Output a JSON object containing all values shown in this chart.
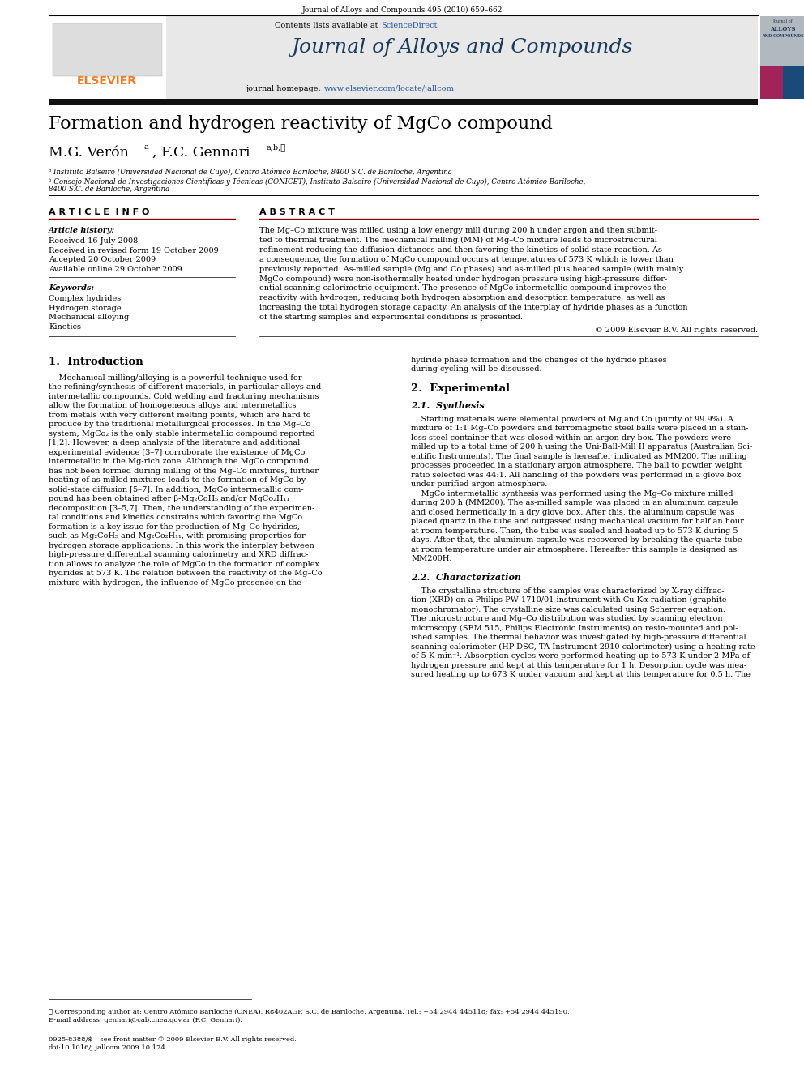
{
  "page_width": 9.92,
  "page_height": 13.23,
  "dpi": 100,
  "bg": "#ffffff",
  "header_ref": "Journal of Alloys and Compounds 495 (2010) 659–662",
  "contents_text": "Contents lists available at ",
  "sciencedirect": "ScienceDirect",
  "sd_color": "#2255aa",
  "journal_name": "Journal of Alloys and Compounds",
  "journal_name_color": "#1a3a5c",
  "homepage_plain": "journal homepage: ",
  "homepage_url": "www.elsevier.com/locate/jallcom",
  "homepage_color": "#2255aa",
  "elsevier_color": "#f47920",
  "title": "Formation and hydrogen reactivity of MgCo compound",
  "author1": "M.G. Verón",
  "author1_sup": "a",
  "author2": ", F.C. Gennari",
  "author2_sup": "a,b,★",
  "affil_a": "ᵃ Instituto Balseiro (Universidad Nacional de Cuyo), Centro Atómico Bariloche, 8400 S.C. de Bariloche, Argentina",
  "affil_b1": "ᵇ Consejo Nacional de Investigaciones Científicas y Técnicas (CONICET), Instituto Balseiro (Universidad Nacional de Cuyo), Centro Atómico Bariloche,",
  "affil_b2": "8400 S.C. de Bariloche, Argentina",
  "art_info_hdr": "A R T I C L E  I N F O",
  "abstract_hdr": "A B S T R A C T",
  "art_history": "Article history:",
  "received": "Received 16 July 2008",
  "received_revised": "Received in revised form 19 October 2009",
  "accepted": "Accepted 20 October 2009",
  "available": "Available online 29 October 2009",
  "keywords_hdr": "Keywords:",
  "keywords": [
    "Complex hydrides",
    "Hydrogen storage",
    "Mechanical alloying",
    "Kinetics"
  ],
  "abstract_lines": [
    "The Mg–Co mixture was milled using a low energy mill during 200 h under argon and then submit-",
    "ted to thermal treatment. The mechanical milling (MM) of Mg–Co mixture leads to microstructural",
    "refinement reducing the diffusion distances and then favoring the kinetics of solid-state reaction. As",
    "a consequence, the formation of MgCo compound occurs at temperatures of 573 K which is lower than",
    "previously reported. As-milled sample (Mg and Co phases) and as-milled plus heated sample (with mainly",
    "MgCo compound) were non-isothermally heated under hydrogen pressure using high-pressure differ-",
    "ential scanning calorimetric equipment. The presence of MgCo intermetallic compound improves the",
    "reactivity with hydrogen, reducing both hydrogen absorption and desorption temperature, as well as",
    "increasing the total hydrogen storage capacity. An analysis of the interplay of hydride phases as a function",
    "of the starting samples and experimental conditions is presented."
  ],
  "copyright": "© 2009 Elsevier B.V. All rights reserved.",
  "sec1_title": "1.  Introduction",
  "sec1_col1": [
    "    Mechanical milling/alloying is a powerful technique used for",
    "the refining/synthesis of different materials, in particular alloys and",
    "intermetallic compounds. Cold welding and fracturing mechanisms",
    "allow the formation of homogeneous alloys and intermetallics",
    "from metals with very different melting points, which are hard to",
    "produce by the traditional metallurgical processes. In the Mg–Co",
    "system, MgCo₂ is the only stable intermetallic compound reported",
    "[1,2]. However, a deep analysis of the literature and additional",
    "experimental evidence [3–7] corroborate the existence of MgCo",
    "intermetallic in the Mg-rich zone. Although the MgCo compound",
    "has not been formed during milling of the Mg–Co mixtures, further",
    "heating of as-milled mixtures leads to the formation of MgCo by",
    "solid-state diffusion [5–7]. In addition, MgCo intermetallic com-",
    "pound has been obtained after β-Mg₂CoH₅ and/or MgCo₂H₁₁",
    "decomposition [3–5,7]. Then, the understanding of the experimen-",
    "tal conditions and kinetics constrains which favoring the MgCo",
    "formation is a key issue for the production of Mg–Co hydrides,",
    "such as Mg₂CoH₅ and Mg₂Co₂H₁₁, with promising properties for",
    "hydrogen storage applications. In this work the interplay between",
    "high-pressure differential scanning calorimetry and XRD diffrac-",
    "tion allows to analyze the role of MgCo in the formation of complex",
    "hydrides at 573 K. The relation between the reactivity of the Mg–Co",
    "mixture with hydrogen, the influence of MgCo presence on the"
  ],
  "sec1_col2_cont": [
    "hydride phase formation and the changes of the hydride phases",
    "during cycling will be discussed."
  ],
  "sec2_title": "2.  Experimental",
  "sec21_title": "2.1.  Synthesis",
  "sec21_lines": [
    "    Starting materials were elemental powders of Mg and Co (purity of 99.9%). A",
    "mixture of 1:1 Mg–Co powders and ferromagnetic steel balls were placed in a stain-",
    "less steel container that was closed within an argon dry box. The powders were",
    "milled up to a total time of 200 h using the Uni-Ball-Mill II apparatus (Australian Sci-",
    "entific Instruments). The final sample is hereafter indicated as MM200. The milling",
    "processes proceeded in a stationary argon atmosphere. The ball to powder weight",
    "ratio selected was 44:1. All handling of the powders was performed in a glove box",
    "under purified argon atmosphere.",
    "    MgCo intermetallic synthesis was performed using the Mg–Co mixture milled",
    "during 200 h (MM200). The as-milled sample was placed in an aluminum capsule",
    "and closed hermetically in a dry glove box. After this, the aluminum capsule was",
    "placed quartz in the tube and outgassed using mechanical vacuum for half an hour",
    "at room temperature. Then, the tube was sealed and heated up to 573 K during 5",
    "days. After that, the aluminum capsule was recovered by breaking the quartz tube",
    "at room temperature under air atmosphere. Hereafter this sample is designed as",
    "MM200H."
  ],
  "sec22_title": "2.2.  Characterization",
  "sec22_lines": [
    "    The crystalline structure of the samples was characterized by X-ray diffrac-",
    "tion (XRD) on a Philips PW 1710/01 instrument with Cu Kα radiation (graphite",
    "monochromator). The crystalline size was calculated using Scherrer equation.",
    "The microstructure and Mg–Co distribution was studied by scanning electron",
    "microscopy (SEM 515, Philips Electronic Instruments) on resin-mounted and pol-",
    "ished samples. The thermal behavior was investigated by high-pressure differential",
    "scanning calorimeter (HP-DSC, TA Instrument 2910 calorimeter) using a heating rate",
    "of 5 K min⁻¹. Absorption cycles were performed heating up to 573 K under 2 MPa of",
    "hydrogen pressure and kept at this temperature for 1 h. Desorption cycle was mea-",
    "sured heating up to 673 K under vacuum and kept at this temperature for 0.5 h. The"
  ],
  "footnote1": "★ Corresponding author at: Centro Atómico Bariloche (CNEA), R8402AGP, S.C. de Bariloche, Argentina. Tel.: +54 2944 445118; fax: +54 2944 445190.",
  "footnote2": "E-mail address: gennari@cab.cnea.gov.ar (F.C. Gennari).",
  "issn": "0925-8388/$ – see front matter © 2009 Elsevier B.V. All rights reserved.",
  "doi": "doi:10.1016/j.jallcom.2009.10.174"
}
